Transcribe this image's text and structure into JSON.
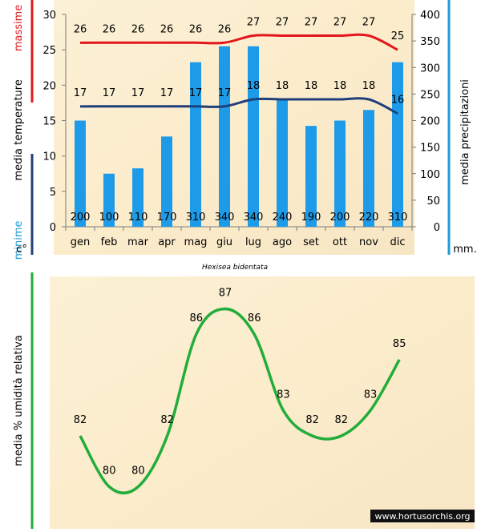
{
  "credit": "www.hortusorchis.org",
  "chart_data": [
    {
      "type": "bar+line",
      "title": "Hexisea bidentata",
      "categories": [
        "gen",
        "feb",
        "mar",
        "apr",
        "mag",
        "giu",
        "lug",
        "ago",
        "set",
        "ott",
        "nov",
        "dic"
      ],
      "left_axis": {
        "ticks": [
          0,
          5,
          10,
          15,
          20,
          25,
          30
        ],
        "ylim": [
          0,
          30
        ],
        "unit": "c°",
        "label_parts": [
          {
            "text": "minime",
            "color": "#1e9ad6"
          },
          {
            "text": "media  temperature",
            "color": "#000000"
          },
          {
            "text": "massime",
            "color": "#e31a1c"
          }
        ]
      },
      "right_axis": {
        "ticks": [
          0,
          50,
          100,
          150,
          200,
          250,
          300,
          350,
          400
        ],
        "ylim": [
          0,
          400
        ],
        "unit": "mm.",
        "label": "media  precipitazioni"
      },
      "series": [
        {
          "name": "precipitazioni",
          "kind": "bar",
          "axis": "right",
          "color": "#1e9be8",
          "values": [
            200,
            100,
            110,
            170,
            310,
            340,
            340,
            240,
            190,
            200,
            220,
            310
          ]
        },
        {
          "name": "massime",
          "kind": "line",
          "axis": "left",
          "color": "#e3161c",
          "values": [
            26,
            26,
            26,
            26,
            26,
            26,
            27,
            27,
            27,
            27,
            27,
            25
          ]
        },
        {
          "name": "minime",
          "kind": "line",
          "axis": "left",
          "color": "#1f3f7a",
          "values": [
            17,
            17,
            17,
            17,
            17,
            17,
            18,
            18,
            18,
            18,
            18,
            16
          ]
        }
      ]
    },
    {
      "type": "line",
      "ylabel": "media %  umidità relativa",
      "series": [
        {
          "name": "umidità relativa",
          "color": "#22ad3b",
          "values": [
            82,
            80,
            80,
            82,
            86,
            87,
            86,
            83,
            82,
            82,
            83,
            85
          ]
        }
      ]
    }
  ]
}
